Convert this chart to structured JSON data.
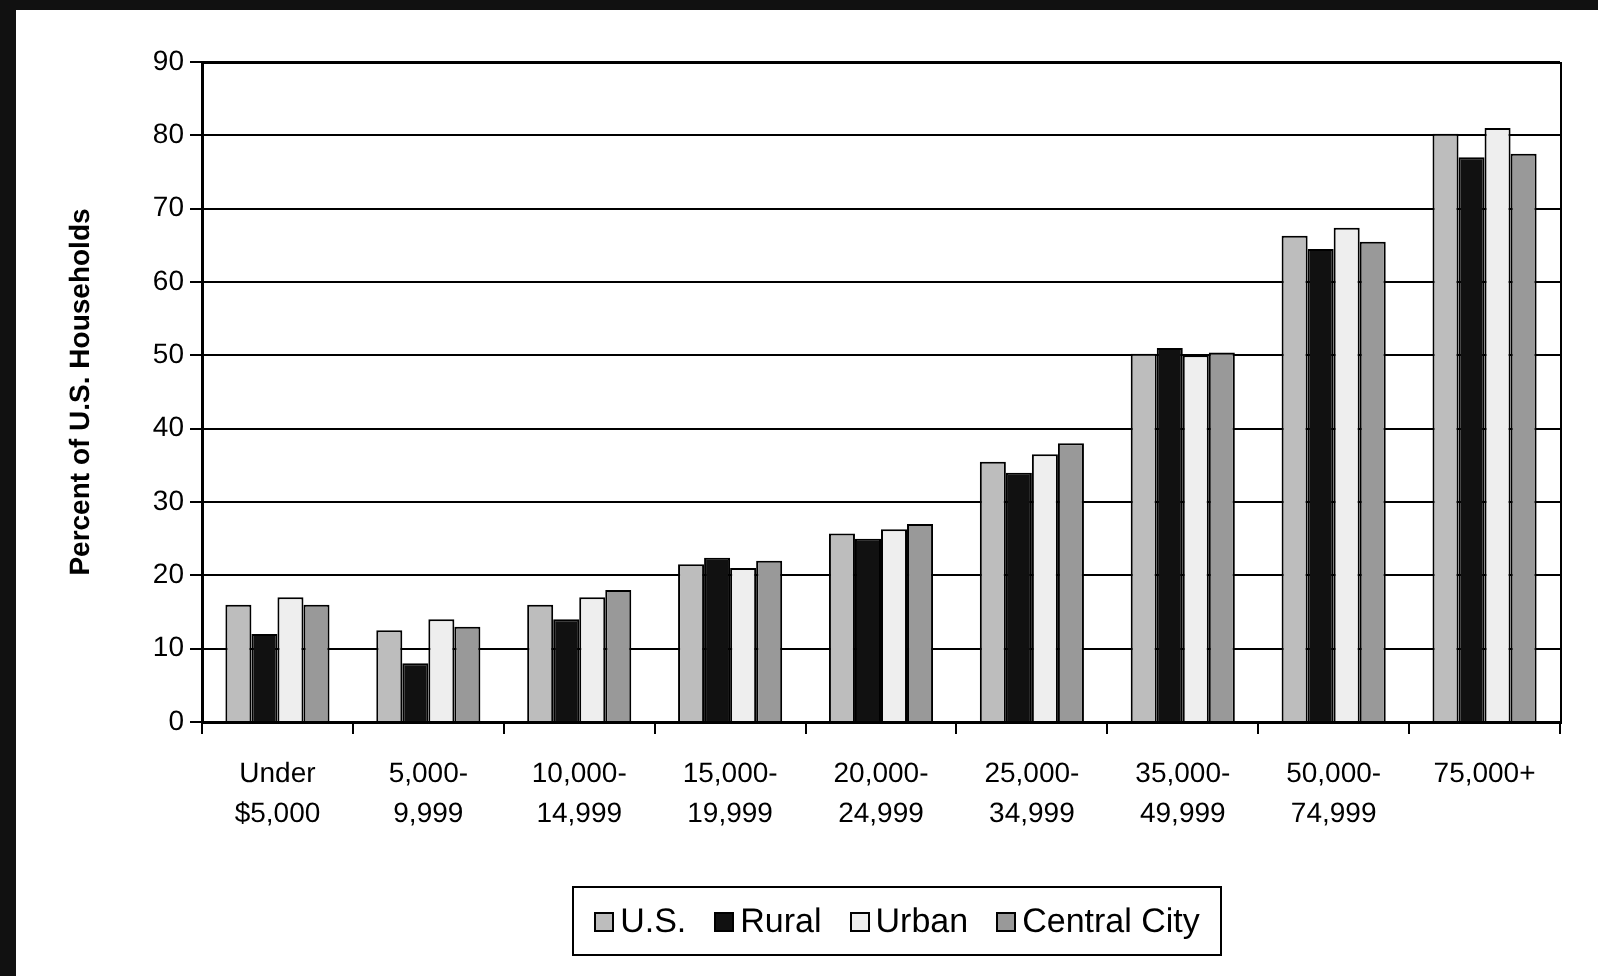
{
  "chart_data": {
    "type": "bar",
    "ylabel": "Percent of U.S. Households",
    "categories": [
      "Under $5,000",
      "5,000-9,999",
      "10,000-14,999",
      "15,000-19,999",
      "20,000-24,999",
      "25,000-34,999",
      "35,000-49,999",
      "50,000-74,999",
      "75,000+"
    ],
    "series": [
      {
        "name": "U.S.",
        "color": "#bdbdbd",
        "values": [
          16,
          12.5,
          16,
          21.5,
          25.7,
          35.5,
          50.2,
          66.3,
          80.2
        ]
      },
      {
        "name": "Rural",
        "color": "#111111",
        "values": [
          12,
          8,
          14,
          22.4,
          25,
          34,
          51,
          64.5,
          77
        ]
      },
      {
        "name": "Urban",
        "color": "#eeeeee",
        "values": [
          17,
          14,
          17,
          21,
          26.3,
          36.5,
          50,
          67.4,
          81
        ]
      },
      {
        "name": "Central City",
        "color": "#999999",
        "values": [
          16,
          13,
          18,
          22,
          27,
          38,
          50.4,
          65.5,
          77.5
        ]
      }
    ],
    "ylim": [
      0,
      90
    ],
    "yticks": [
      0,
      10,
      20,
      30,
      40,
      50,
      60,
      70,
      80,
      90
    ],
    "grid": "y",
    "legend": "bottom"
  }
}
